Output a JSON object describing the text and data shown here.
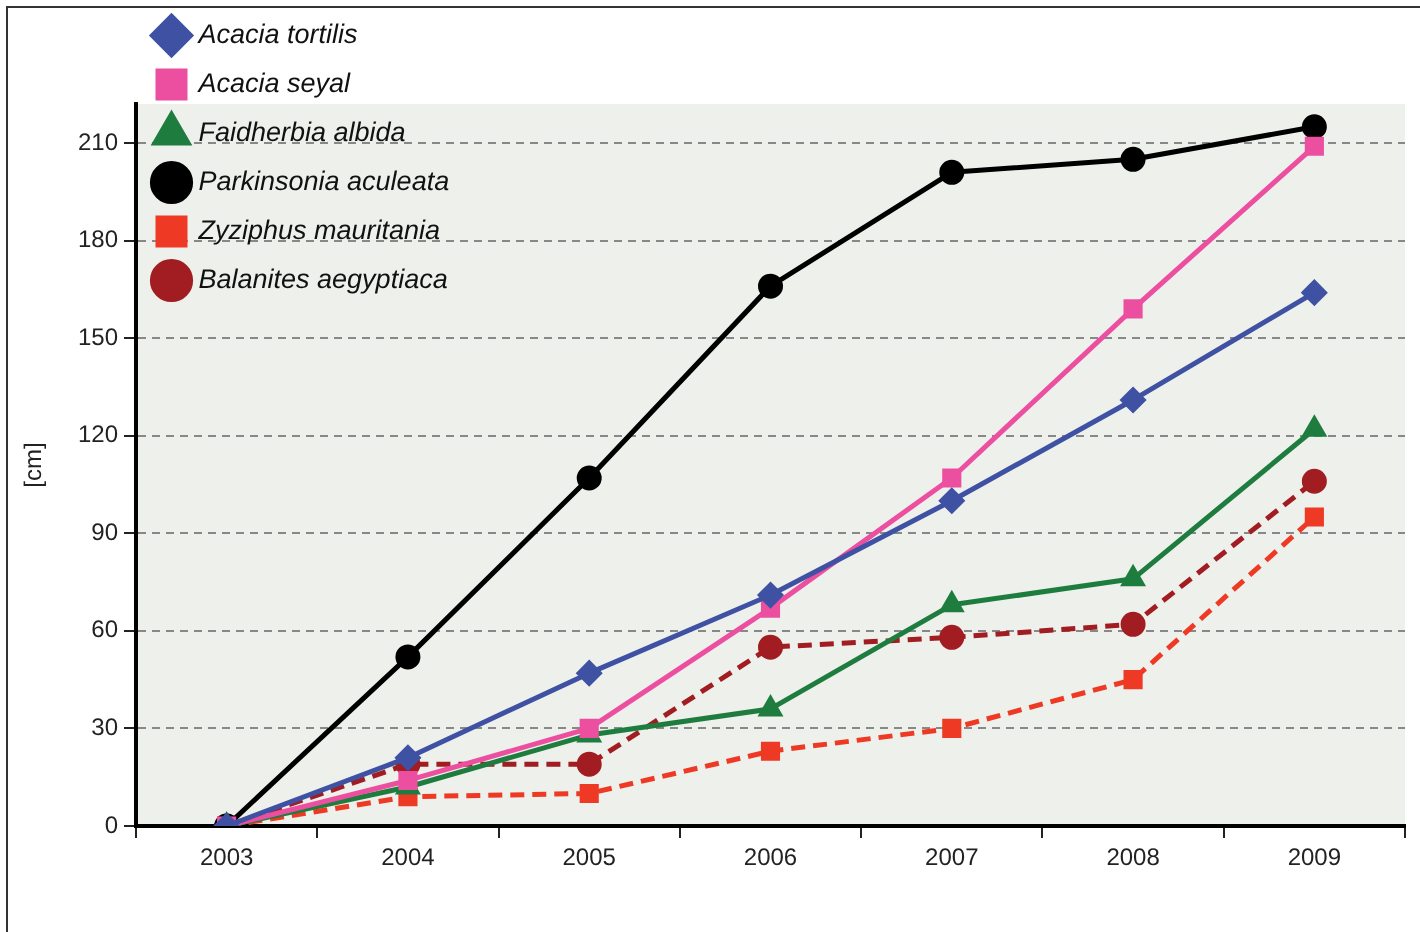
{
  "chart_data": {
    "type": "line",
    "ylabel": "[cm]",
    "categories": [
      "2003",
      "2004",
      "2005",
      "2006",
      "2007",
      "2008",
      "2009"
    ],
    "series": [
      {
        "name": "Acacia tortilis",
        "color": "#3f51a3",
        "marker": "diamond",
        "line_style": "solid",
        "values": [
          0,
          21,
          47,
          71,
          100,
          131,
          164
        ]
      },
      {
        "name": "Acacia seyal",
        "color": "#ec4fa0",
        "marker": "square",
        "line_style": "solid",
        "values": [
          0,
          14,
          30,
          67,
          107,
          159,
          209
        ]
      },
      {
        "name": "Faidherbia albida",
        "color": "#1e7d3e",
        "marker": "triangle",
        "line_style": "solid",
        "values": [
          0,
          12,
          28,
          36,
          68,
          76,
          122
        ]
      },
      {
        "name": "Parkinsonia aculeata",
        "color": "#000000",
        "marker": "circle",
        "line_style": "solid",
        "values": [
          0,
          52,
          107,
          166,
          201,
          205,
          215
        ]
      },
      {
        "name": "Zyziphus mauritania",
        "color": "#ee3a24",
        "marker": "square",
        "line_style": "dashed",
        "values": [
          0,
          9,
          10,
          23,
          30,
          45,
          95
        ]
      },
      {
        "name": "Balanites aegyptiaca",
        "color": "#a11d21",
        "marker": "circle",
        "line_style": "dashed",
        "values": [
          0,
          19,
          19,
          55,
          58,
          62,
          106
        ]
      }
    ],
    "ylim": [
      0,
      222
    ],
    "yticks": [
      0,
      30,
      60,
      90,
      120,
      150,
      180,
      210
    ],
    "grid": "y",
    "legend": "top left"
  }
}
